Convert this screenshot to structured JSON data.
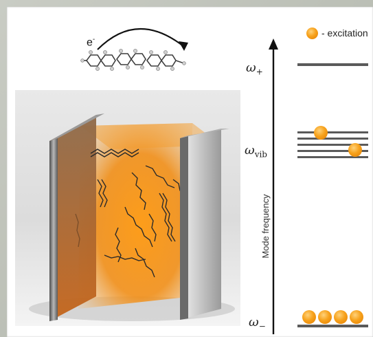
{
  "legend": {
    "text": "- excitation",
    "marker_color": "#f39a12"
  },
  "electron": {
    "label": "e",
    "superscript": "-"
  },
  "axis": {
    "title": "Mode frequency"
  },
  "levels": {
    "upper": {
      "symbol": "ω",
      "subscript": "+"
    },
    "vib": {
      "symbol": "ω",
      "subscript": "vib",
      "line_count": 5,
      "excitations": 2
    },
    "lower": {
      "symbol": "ω",
      "subscript": "−",
      "excitations": 4
    }
  },
  "colors": {
    "level_line": "#5a5a5a",
    "excitation": "#f39a12",
    "cavity_glow": "#f08a0a",
    "mirror": "#7a7a7a"
  }
}
